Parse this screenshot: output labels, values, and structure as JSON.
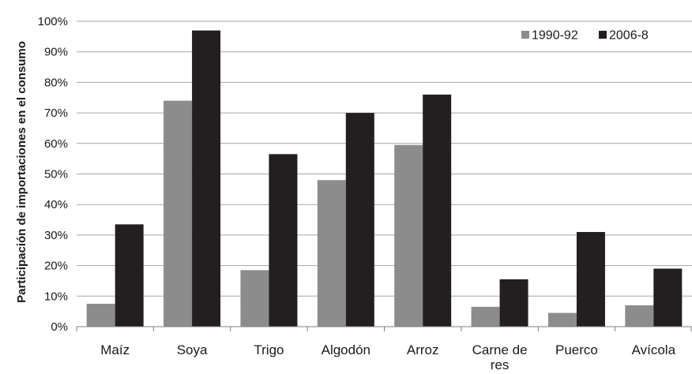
{
  "chart_data": {
    "type": "bar",
    "title": "",
    "xlabel": "",
    "ylabel": "Participación de importaciones en el consumo",
    "ylim": [
      0,
      100
    ],
    "yticks": [
      0,
      10,
      20,
      30,
      40,
      50,
      60,
      70,
      80,
      90,
      100
    ],
    "ytick_suffix": "%",
    "categories": [
      "Maíz",
      "Soya",
      "Trigo",
      "Algodón",
      "Arroz",
      "Carne de res",
      "Puerco",
      "Avícola"
    ],
    "series": [
      {
        "name": "1990-92",
        "color": "#8c8c8c",
        "values": [
          7.5,
          74,
          18.5,
          48,
          59.5,
          6.5,
          4.5,
          7
        ]
      },
      {
        "name": "2006-8",
        "color": "#231f20",
        "values": [
          33.5,
          97,
          56.5,
          70,
          76,
          15.5,
          31,
          19
        ]
      }
    ],
    "grid": true,
    "legend_position": "top-right"
  }
}
